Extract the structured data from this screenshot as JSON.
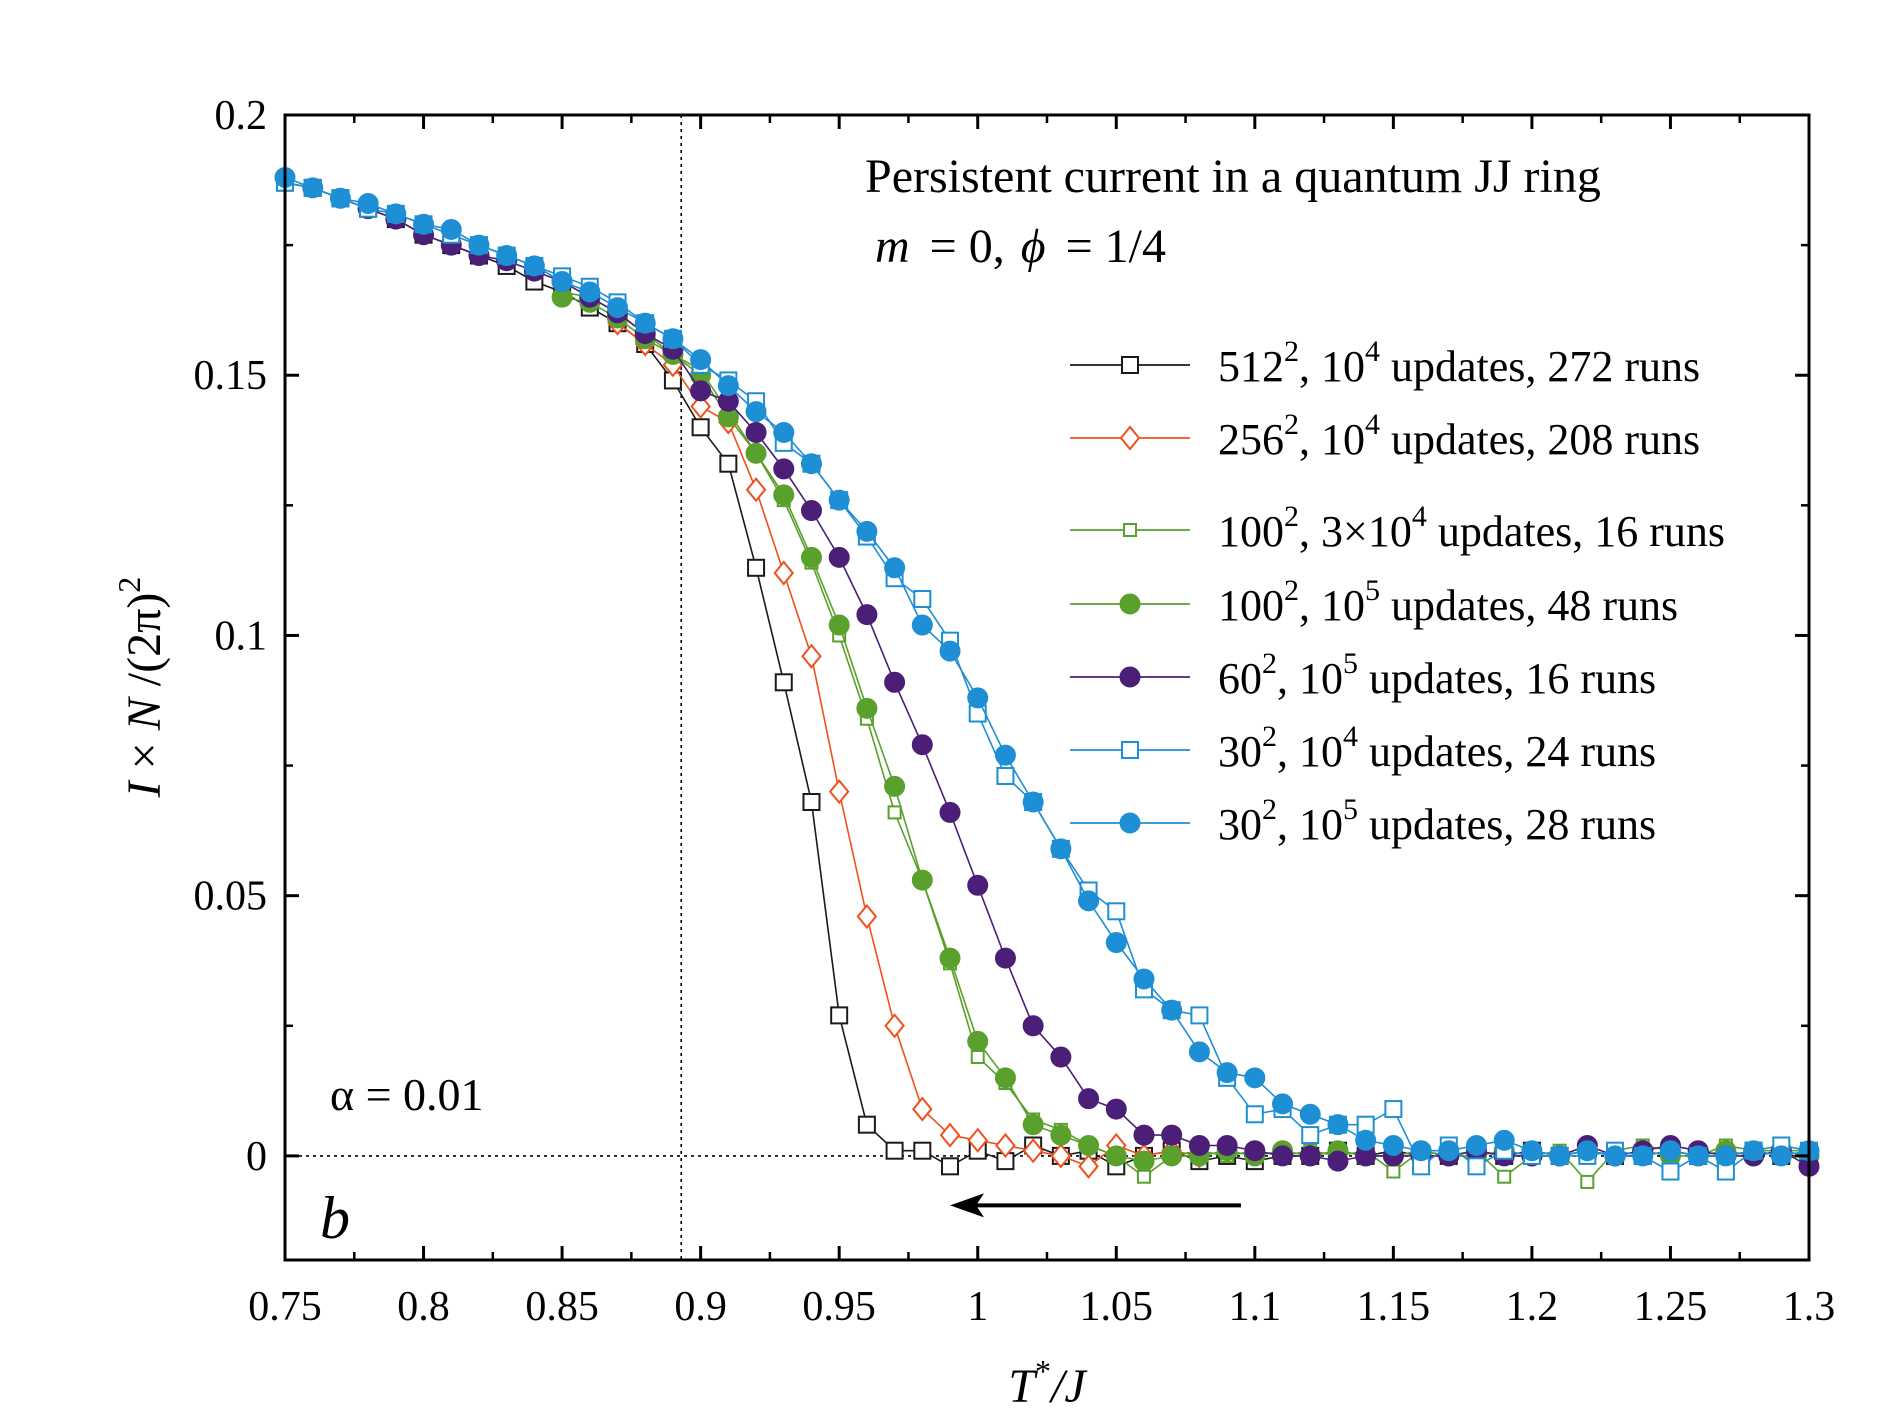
{
  "chart_data": {
    "type": "line",
    "title": "Persistent current in a quantum JJ ring",
    "subtitle": {
      "m_symbol": "m",
      "m_value": " = 0,",
      "phi_symbol": "ϕ",
      "phi_value": " = 1/4"
    },
    "xlabel": {
      "main": "T",
      "sup": "*",
      "rest": "/J"
    },
    "ylabel": {
      "prefix": "I",
      "times": " × ",
      "n": "N",
      "rest": " /(2π)",
      "sup": "2"
    },
    "xlim": [
      0.75,
      1.3
    ],
    "ylim": [
      -0.02,
      0.2
    ],
    "x_ticks": [
      "0.75",
      "0.8",
      "0.85",
      "0.9",
      "0.95",
      "1",
      "1.05",
      "1.1",
      "1.15",
      "1.2",
      "1.25",
      "1.3"
    ],
    "y_ticks": [
      "0",
      "0.05",
      "0.1",
      "0.15",
      "0.2"
    ],
    "annotations": {
      "alpha": "α = 0.01",
      "panel": "b",
      "vline_x": 0.893,
      "hline_y": 0,
      "arrow": {
        "from": 1.095,
        "to": 0.99,
        "y": -0.0095
      }
    },
    "legend_position": "top-right",
    "series": [
      {
        "label": {
          "base": "512",
          "sup1": "2",
          "mid": ", 10",
          "sup2": "4",
          "tail": " updates, 272 runs"
        },
        "color": "#1a1a1a",
        "marker": "square-open",
        "lineWidth": 1.6,
        "x": [
          0.75,
          0.76,
          0.77,
          0.78,
          0.79,
          0.8,
          0.81,
          0.82,
          0.83,
          0.84,
          0.85,
          0.86,
          0.87,
          0.88,
          0.89,
          0.9,
          0.91,
          0.92,
          0.93,
          0.94,
          0.95,
          0.96,
          0.97,
          0.98,
          0.99,
          1.0,
          1.01,
          1.02,
          1.03,
          1.04,
          1.05,
          1.06,
          1.07,
          1.08,
          1.09,
          1.1,
          1.11,
          1.12,
          1.13,
          1.14,
          1.15,
          1.16,
          1.17,
          1.18,
          1.19,
          1.2,
          1.21,
          1.22,
          1.23,
          1.24,
          1.25,
          1.26,
          1.27,
          1.28,
          1.29,
          1.3
        ],
        "y": [
          0.187,
          0.186,
          0.184,
          0.182,
          0.18,
          0.177,
          0.175,
          0.173,
          0.171,
          0.168,
          0.166,
          0.163,
          0.16,
          0.156,
          0.149,
          0.14,
          0.133,
          0.113,
          0.091,
          0.068,
          0.027,
          0.006,
          0.001,
          0.001,
          -0.002,
          0.001,
          -0.001,
          0.002,
          0.0,
          0.001,
          -0.002,
          0.0,
          0.001,
          -0.001,
          0.0,
          -0.001,
          0.0,
          0.0,
          0.001,
          0.0,
          0.001,
          0.0,
          0.0,
          0.001,
          0.0,
          0.001,
          0.0,
          0.001,
          0.0,
          0.0,
          0.001,
          0.0,
          0.0,
          0.001,
          0.0,
          0.0
        ]
      },
      {
        "label": {
          "base": "256",
          "sup1": "2",
          "mid": ", 10",
          "sup2": "4",
          "tail": " updates, 208 runs"
        },
        "color": "#f0501e",
        "marker": "diamond-open",
        "lineWidth": 1.6,
        "x": [
          0.87,
          0.88,
          0.89,
          0.9,
          0.91,
          0.92,
          0.93,
          0.94,
          0.95,
          0.96,
          0.97,
          0.98,
          0.99,
          1.0,
          1.01,
          1.02,
          1.03,
          1.04,
          1.05,
          1.06,
          1.07,
          1.08
        ],
        "y": [
          0.16,
          0.156,
          0.152,
          0.144,
          0.141,
          0.128,
          0.112,
          0.096,
          0.07,
          0.046,
          0.025,
          0.009,
          0.004,
          0.003,
          0.002,
          0.001,
          0.0,
          -0.002,
          0.002,
          0.0,
          0.001,
          0.0
        ]
      },
      {
        "label": {
          "base": "100",
          "sup1": "2",
          "mid": ", 3×10",
          "sup2": "4",
          "tail": " updates, 16 runs"
        },
        "color": "#5aa02c",
        "marker": "square-open-small",
        "lineWidth": 1.6,
        "x": [
          0.85,
          0.86,
          0.87,
          0.88,
          0.89,
          0.9,
          0.91,
          0.92,
          0.93,
          0.94,
          0.95,
          0.96,
          0.97,
          0.98,
          0.99,
          1.0,
          1.01,
          1.02,
          1.03,
          1.04,
          1.05,
          1.06,
          1.07,
          1.08,
          1.09,
          1.1,
          1.11,
          1.12,
          1.13,
          1.14,
          1.15,
          1.16,
          1.17,
          1.18,
          1.19,
          1.2,
          1.21,
          1.22,
          1.23,
          1.24,
          1.25,
          1.26,
          1.27,
          1.28,
          1.29,
          1.3
        ],
        "y": [
          0.166,
          0.165,
          0.162,
          0.158,
          0.154,
          0.151,
          0.143,
          0.135,
          0.126,
          0.114,
          0.1,
          0.084,
          0.066,
          0.053,
          0.037,
          0.019,
          0.014,
          0.007,
          0.005,
          0.002,
          0.0,
          -0.004,
          0.0,
          0.001,
          0.0,
          0.001,
          0.0,
          0.001,
          0.0,
          0.001,
          -0.003,
          0.001,
          0.0,
          0.001,
          -0.004,
          0.0,
          0.001,
          -0.005,
          0.001,
          0.002,
          0.001,
          0.0,
          0.002,
          0.001,
          0.001,
          0.001
        ]
      },
      {
        "label": {
          "base": "100",
          "sup1": "2",
          "mid": ", 10",
          "sup2": "5",
          "tail": " updates, 48 runs"
        },
        "color": "#5aa02c",
        "marker": "circle-filled",
        "lineWidth": 1.6,
        "x": [
          0.85,
          0.86,
          0.87,
          0.88,
          0.89,
          0.9,
          0.91,
          0.92,
          0.93,
          0.94,
          0.95,
          0.96,
          0.97,
          0.98,
          0.99,
          1.0,
          1.01,
          1.02,
          1.03,
          1.04,
          1.05,
          1.06,
          1.07,
          1.08,
          1.09,
          1.1,
          1.11,
          1.12,
          1.13,
          1.14,
          1.15,
          1.16,
          1.17,
          1.18,
          1.19,
          1.2,
          1.21,
          1.22,
          1.23,
          1.24,
          1.25,
          1.26,
          1.27,
          1.28,
          1.29,
          1.3
        ],
        "y": [
          0.165,
          0.164,
          0.161,
          0.157,
          0.154,
          0.15,
          0.142,
          0.135,
          0.127,
          0.115,
          0.102,
          0.086,
          0.071,
          0.053,
          0.038,
          0.022,
          0.015,
          0.006,
          0.004,
          0.002,
          0.0,
          -0.001,
          0.0,
          0.0,
          0.001,
          0.0,
          0.001,
          0.0,
          0.001,
          0.0,
          0.0,
          0.001,
          0.0,
          0.0,
          0.001,
          0.0,
          0.0,
          0.001,
          0.0,
          0.001,
          0.0,
          0.0,
          0.001,
          0.0,
          0.001,
          0.0
        ]
      },
      {
        "label": {
          "base": "60",
          "sup1": "2",
          "mid": ", 10",
          "sup2": "5",
          "tail": " updates, 16 runs"
        },
        "color": "#4b1e78",
        "marker": "circle-filled",
        "lineWidth": 1.6,
        "x": [
          0.78,
          0.79,
          0.8,
          0.81,
          0.82,
          0.83,
          0.84,
          0.85,
          0.86,
          0.87,
          0.88,
          0.89,
          0.9,
          0.91,
          0.92,
          0.93,
          0.94,
          0.95,
          0.96,
          0.97,
          0.98,
          0.99,
          1.0,
          1.01,
          1.02,
          1.03,
          1.04,
          1.05,
          1.06,
          1.07,
          1.08,
          1.09,
          1.1,
          1.11,
          1.12,
          1.13,
          1.14,
          1.15,
          1.16,
          1.17,
          1.18,
          1.19,
          1.2,
          1.21,
          1.22,
          1.23,
          1.24,
          1.25,
          1.26,
          1.27,
          1.28,
          1.29,
          1.3
        ],
        "y": [
          0.182,
          0.18,
          0.177,
          0.175,
          0.173,
          0.172,
          0.17,
          0.168,
          0.165,
          0.162,
          0.158,
          0.155,
          0.147,
          0.145,
          0.139,
          0.132,
          0.124,
          0.115,
          0.104,
          0.091,
          0.079,
          0.066,
          0.052,
          0.038,
          0.025,
          0.019,
          0.011,
          0.009,
          0.004,
          0.004,
          0.002,
          0.002,
          0.001,
          0.0,
          0.0,
          -0.001,
          0.0,
          0.0,
          0.0,
          0.0,
          0.001,
          0.0,
          0.0,
          0.0,
          0.002,
          0.0,
          0.001,
          0.002,
          0.001,
          0.0,
          0.0,
          0.001,
          -0.002
        ]
      },
      {
        "label": {
          "base": "30",
          "sup1": "2",
          "mid": ", 10",
          "sup2": "4",
          "tail": " updates, 24 runs"
        },
        "color": "#1e8fd4",
        "marker": "square-open",
        "lineWidth": 1.6,
        "x": [
          0.75,
          0.76,
          0.77,
          0.78,
          0.79,
          0.8,
          0.81,
          0.82,
          0.83,
          0.84,
          0.85,
          0.86,
          0.87,
          0.88,
          0.89,
          0.9,
          0.91,
          0.92,
          0.93,
          0.94,
          0.95,
          0.96,
          0.97,
          0.98,
          0.99,
          1.0,
          1.01,
          1.02,
          1.03,
          1.04,
          1.05,
          1.06,
          1.07,
          1.08,
          1.09,
          1.1,
          1.11,
          1.12,
          1.13,
          1.14,
          1.15,
          1.16,
          1.17,
          1.18,
          1.19,
          1.2,
          1.21,
          1.22,
          1.23,
          1.24,
          1.25,
          1.26,
          1.27,
          1.28,
          1.29,
          1.3
        ],
        "y": [
          0.187,
          0.186,
          0.184,
          0.182,
          0.181,
          0.179,
          0.177,
          0.175,
          0.173,
          0.171,
          0.169,
          0.167,
          0.164,
          0.16,
          0.157,
          0.152,
          0.149,
          0.145,
          0.137,
          0.133,
          0.126,
          0.119,
          0.111,
          0.107,
          0.099,
          0.085,
          0.073,
          0.068,
          0.059,
          0.051,
          0.047,
          0.032,
          0.028,
          0.027,
          0.015,
          0.008,
          0.009,
          0.004,
          0.006,
          0.006,
          0.009,
          -0.002,
          0.002,
          -0.002,
          0.001,
          0.0,
          0.0,
          0.0,
          0.001,
          0.0,
          -0.003,
          0.0,
          -0.003,
          0.001,
          0.002,
          0.001
        ]
      },
      {
        "label": {
          "base": "30",
          "sup1": "2",
          "mid": ", 10",
          "sup2": "5",
          "tail": " updates, 28 runs"
        },
        "color": "#1e8fd4",
        "marker": "circle-filled",
        "lineWidth": 1.6,
        "x": [
          0.75,
          0.76,
          0.77,
          0.78,
          0.79,
          0.8,
          0.81,
          0.82,
          0.83,
          0.84,
          0.85,
          0.86,
          0.87,
          0.88,
          0.89,
          0.9,
          0.91,
          0.92,
          0.93,
          0.94,
          0.95,
          0.96,
          0.97,
          0.98,
          0.99,
          1.0,
          1.01,
          1.02,
          1.03,
          1.04,
          1.05,
          1.06,
          1.07,
          1.08,
          1.09,
          1.1,
          1.11,
          1.12,
          1.13,
          1.14,
          1.15,
          1.16,
          1.17,
          1.18,
          1.19,
          1.2,
          1.21,
          1.22,
          1.23,
          1.24,
          1.25,
          1.26,
          1.27,
          1.28,
          1.29,
          1.3
        ],
        "y": [
          0.188,
          0.186,
          0.184,
          0.183,
          0.181,
          0.179,
          0.178,
          0.175,
          0.173,
          0.171,
          0.168,
          0.166,
          0.163,
          0.16,
          0.157,
          0.153,
          0.148,
          0.143,
          0.139,
          0.133,
          0.126,
          0.12,
          0.113,
          0.102,
          0.097,
          0.088,
          0.077,
          0.068,
          0.059,
          0.049,
          0.041,
          0.034,
          0.028,
          0.02,
          0.016,
          0.015,
          0.01,
          0.008,
          0.006,
          0.003,
          0.002,
          0.001,
          0.001,
          0.002,
          0.003,
          0.001,
          0.0,
          0.001,
          0.0,
          0.0,
          0.001,
          0.0,
          0.0,
          0.001,
          0.0,
          0.001
        ]
      }
    ]
  }
}
